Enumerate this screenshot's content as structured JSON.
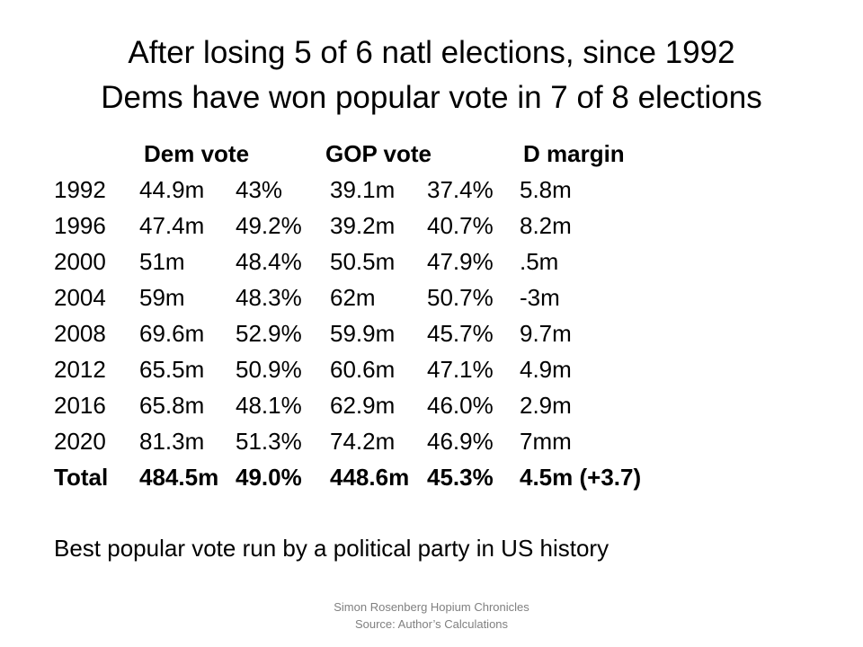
{
  "title": {
    "line1": "After losing 5 of 6 natl elections, since 1992",
    "line2": "Dems have won popular vote in 7 of 8 elections"
  },
  "table": {
    "headers": [
      "Dem vote",
      "GOP vote",
      "D margin"
    ],
    "rows": [
      {
        "year": "1992",
        "dem_votes": "44.9m",
        "dem_pct": "43%",
        "gop_votes": "39.1m",
        "gop_pct": "37.4%",
        "margin": "5.8m"
      },
      {
        "year": "1996",
        "dem_votes": "47.4m",
        "dem_pct": "49.2%",
        "gop_votes": "39.2m",
        "gop_pct": "40.7%",
        "margin": "8.2m"
      },
      {
        "year": "2000",
        "dem_votes": "51m",
        "dem_pct": "48.4%",
        "gop_votes": "50.5m",
        "gop_pct": "47.9%",
        "margin": ".5m"
      },
      {
        "year": "2004",
        "dem_votes": "59m",
        "dem_pct": "48.3%",
        "gop_votes": "62m",
        "gop_pct": "50.7%",
        "margin": "-3m"
      },
      {
        "year": "2008",
        "dem_votes": "69.6m",
        "dem_pct": "52.9%",
        "gop_votes": "59.9m",
        "gop_pct": "45.7%",
        "margin": "9.7m"
      },
      {
        "year": "2012",
        "dem_votes": "65.5m",
        "dem_pct": "50.9%",
        "gop_votes": "60.6m",
        "gop_pct": "47.1%",
        "margin": "4.9m"
      },
      {
        "year": "2016",
        "dem_votes": "65.8m",
        "dem_pct": "48.1%",
        "gop_votes": "62.9m",
        "gop_pct": "46.0%",
        "margin": "2.9m"
      },
      {
        "year": "2020",
        "dem_votes": "81.3m",
        "dem_pct": "51.3%",
        "gop_votes": "74.2m",
        "gop_pct": "46.9%",
        "margin": "7mm"
      }
    ],
    "total": {
      "label": "Total",
      "dem_votes": "484.5m",
      "dem_pct": "49.0%",
      "gop_votes": "448.6m",
      "gop_pct": "45.3%",
      "margin": "4.5m (+3.7)"
    }
  },
  "tagline": "Best popular vote run by a political party in US history",
  "footer": {
    "line1": "Simon Rosenberg Hopium Chronicles",
    "line2": "Source: Author’s Calculations"
  }
}
